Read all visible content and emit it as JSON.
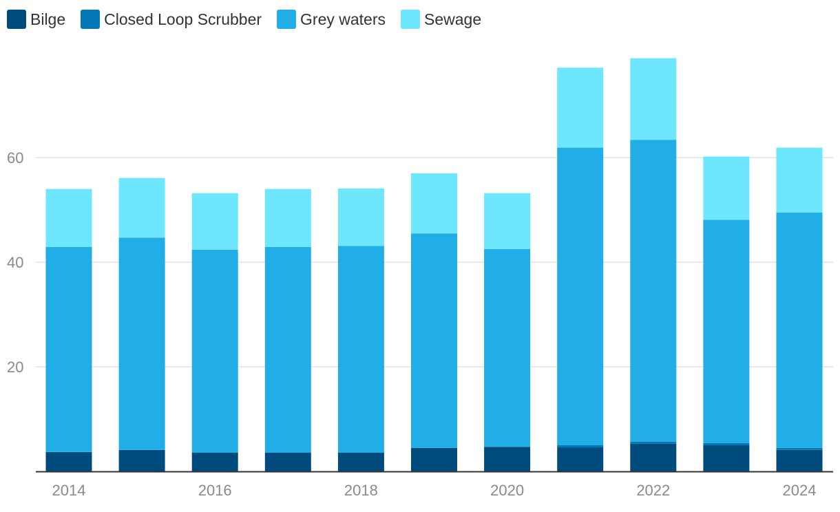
{
  "chart_data": {
    "type": "bar",
    "stacked": true,
    "title": "",
    "xlabel": "",
    "ylabel": "",
    "ylim": [
      0,
      80
    ],
    "yticks": [
      20,
      40,
      60
    ],
    "grid": true,
    "legend_position": "top-left",
    "categories": [
      "2014",
      "2015",
      "2016",
      "2017",
      "2018",
      "2019",
      "2020",
      "2021",
      "2022",
      "2023",
      "2024"
    ],
    "x_tick_labels": [
      "2014",
      "",
      "2016",
      "",
      "2018",
      "",
      "2020",
      "",
      "2022",
      "",
      "2024"
    ],
    "series": [
      {
        "name": "Bilge",
        "color": "#004b7d",
        "values": [
          3.7,
          4.1,
          3.6,
          3.6,
          3.6,
          4.5,
          4.7,
          4.6,
          5.3,
          5.0,
          4.1
        ]
      },
      {
        "name": "Closed Loop Scrubber",
        "color": "#0277b5",
        "values": [
          0,
          0,
          0,
          0,
          0,
          0,
          0,
          0.4,
          0.4,
          0.4,
          0.4
        ]
      },
      {
        "name": "Grey waters",
        "color": "#21aee6",
        "values": [
          39.2,
          40.6,
          38.8,
          39.3,
          39.5,
          41.0,
          37.8,
          56.9,
          57.7,
          42.7,
          45.0
        ]
      },
      {
        "name": "Sewage",
        "color": "#6ee6fe",
        "values": [
          11.1,
          11.4,
          10.8,
          11.1,
          11.0,
          11.5,
          10.7,
          15.3,
          15.6,
          12.1,
          12.4
        ]
      }
    ]
  }
}
